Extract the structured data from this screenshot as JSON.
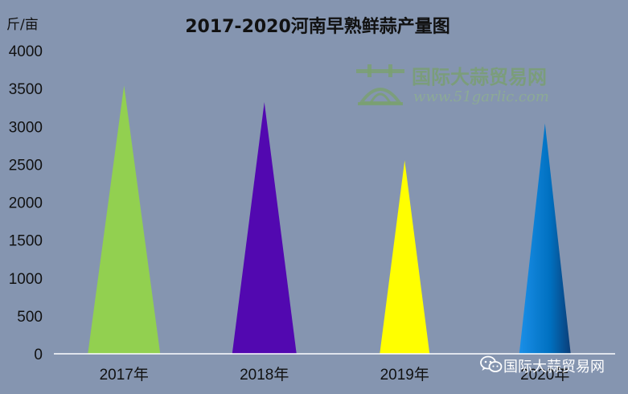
{
  "chart_data": {
    "type": "bar",
    "bar_shape": "triangle",
    "title": "2017-2020河南早熟鲜蒜产量图",
    "unit_label": "斤/亩",
    "categories": [
      "2017年",
      "2018年",
      "2019年",
      "2020年"
    ],
    "values": [
      3540,
      3320,
      2550,
      3040
    ],
    "colors": [
      "#92D050",
      "#5208B0",
      "#FFFF00",
      "#0070C0"
    ],
    "ylim": [
      0,
      4000
    ],
    "yticks": [
      "0",
      "500",
      "1000",
      "1500",
      "2000",
      "2500",
      "3000",
      "3500",
      "4000"
    ],
    "grid": false,
    "legend": "none"
  },
  "watermark": {
    "icon": "garlic-logo-icon",
    "text": "国际大蒜贸易网",
    "url": "www.51garlic.com"
  },
  "wechat_badge": {
    "icon": "wechat-icon",
    "text": "国际大蒜贸易网"
  }
}
